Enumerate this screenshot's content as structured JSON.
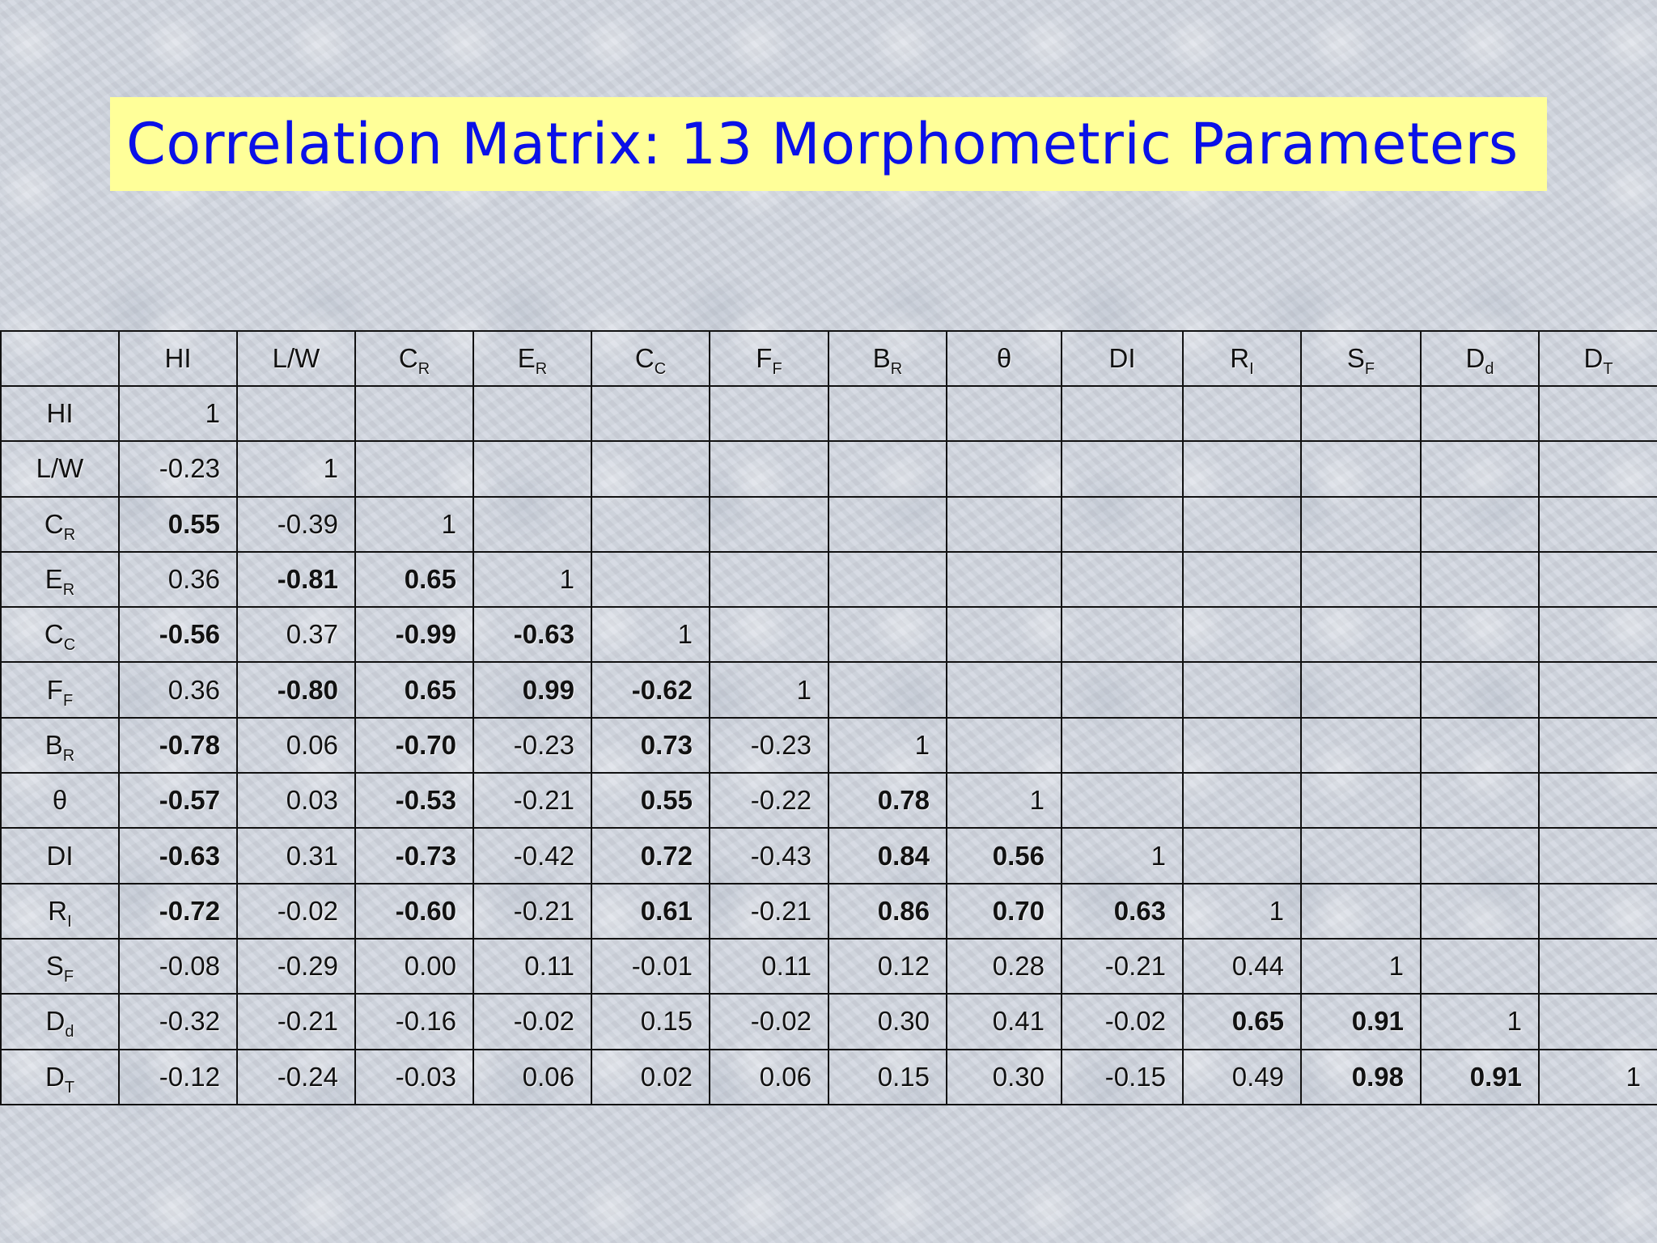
{
  "title": "Correlation Matrix: 13 Morphometric Parameters",
  "columns": [
    {
      "base": "HI",
      "sub": ""
    },
    {
      "base": "L/W",
      "sub": ""
    },
    {
      "base": "C",
      "sub": "R"
    },
    {
      "base": "E",
      "sub": "R"
    },
    {
      "base": "C",
      "sub": "C"
    },
    {
      "base": "F",
      "sub": "F"
    },
    {
      "base": "B",
      "sub": "R"
    },
    {
      "base": "θ",
      "sub": ""
    },
    {
      "base": "DI",
      "sub": ""
    },
    {
      "base": "R",
      "sub": "I"
    },
    {
      "base": "S",
      "sub": "F"
    },
    {
      "base": "D",
      "sub": "d"
    },
    {
      "base": "D",
      "sub": "T"
    }
  ],
  "rows": [
    {
      "base": "HI",
      "sub": "",
      "values": [
        "1"
      ],
      "bold": [
        false
      ]
    },
    {
      "base": "L/W",
      "sub": "",
      "values": [
        "-0.23",
        "1"
      ],
      "bold": [
        false,
        false
      ]
    },
    {
      "base": "C",
      "sub": "R",
      "values": [
        "0.55",
        "-0.39",
        "1"
      ],
      "bold": [
        true,
        false,
        false
      ]
    },
    {
      "base": "E",
      "sub": "R",
      "values": [
        "0.36",
        "-0.81",
        "0.65",
        "1"
      ],
      "bold": [
        false,
        true,
        true,
        false
      ]
    },
    {
      "base": "C",
      "sub": "C",
      "values": [
        "-0.56",
        "0.37",
        "-0.99",
        "-0.63",
        "1"
      ],
      "bold": [
        true,
        false,
        true,
        true,
        false
      ]
    },
    {
      "base": "F",
      "sub": "F",
      "values": [
        "0.36",
        "-0.80",
        "0.65",
        "0.99",
        "-0.62",
        "1"
      ],
      "bold": [
        false,
        true,
        true,
        true,
        true,
        false
      ]
    },
    {
      "base": "B",
      "sub": "R",
      "values": [
        "-0.78",
        "0.06",
        "-0.70",
        "-0.23",
        "0.73",
        "-0.23",
        "1"
      ],
      "bold": [
        true,
        false,
        true,
        false,
        true,
        false,
        false
      ]
    },
    {
      "base": "θ",
      "sub": "",
      "values": [
        "-0.57",
        "0.03",
        "-0.53",
        "-0.21",
        "0.55",
        "-0.22",
        "0.78",
        "1"
      ],
      "bold": [
        true,
        false,
        true,
        false,
        true,
        false,
        true,
        false
      ]
    },
    {
      "base": "DI",
      "sub": "",
      "values": [
        "-0.63",
        "0.31",
        "-0.73",
        "-0.42",
        "0.72",
        "-0.43",
        "0.84",
        "0.56",
        "1"
      ],
      "bold": [
        true,
        false,
        true,
        false,
        true,
        false,
        true,
        true,
        false
      ]
    },
    {
      "base": "R",
      "sub": "I",
      "values": [
        "-0.72",
        "-0.02",
        "-0.60",
        "-0.21",
        "0.61",
        "-0.21",
        "0.86",
        "0.70",
        "0.63",
        "1"
      ],
      "bold": [
        true,
        false,
        true,
        false,
        true,
        false,
        true,
        true,
        true,
        false
      ]
    },
    {
      "base": "S",
      "sub": "F",
      "values": [
        "-0.08",
        "-0.29",
        "0.00",
        "0.11",
        "-0.01",
        "0.11",
        "0.12",
        "0.28",
        "-0.21",
        "0.44",
        "1"
      ],
      "bold": [
        false,
        false,
        false,
        false,
        false,
        false,
        false,
        false,
        false,
        false,
        false
      ]
    },
    {
      "base": "D",
      "sub": "d",
      "values": [
        "-0.32",
        "-0.21",
        "-0.16",
        "-0.02",
        "0.15",
        "-0.02",
        "0.30",
        "0.41",
        "-0.02",
        "0.65",
        "0.91",
        "1"
      ],
      "bold": [
        false,
        false,
        false,
        false,
        false,
        false,
        false,
        false,
        false,
        true,
        true,
        false
      ]
    },
    {
      "base": "D",
      "sub": "T",
      "values": [
        "-0.12",
        "-0.24",
        "-0.03",
        "0.06",
        "0.02",
        "0.06",
        "0.15",
        "0.30",
        "-0.15",
        "0.49",
        "0.98",
        "0.91",
        "1"
      ],
      "bold": [
        false,
        false,
        false,
        false,
        false,
        false,
        false,
        false,
        false,
        false,
        true,
        true,
        false
      ]
    }
  ]
}
